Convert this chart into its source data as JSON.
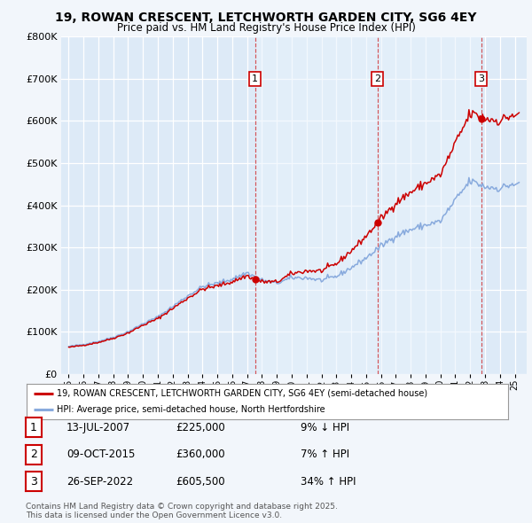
{
  "title1": "19, ROWAN CRESCENT, LETCHWORTH GARDEN CITY, SG6 4EY",
  "title2": "Price paid vs. HM Land Registry's House Price Index (HPI)",
  "legend_red": "19, ROWAN CRESCENT, LETCHWORTH GARDEN CITY, SG6 4EY (semi-detached house)",
  "legend_blue": "HPI: Average price, semi-detached house, North Hertfordshire",
  "footer": "Contains HM Land Registry data © Crown copyright and database right 2025.\nThis data is licensed under the Open Government Licence v3.0.",
  "transactions": [
    {
      "label": "1",
      "date": "13-JUL-2007",
      "price": "£225,000",
      "pct": "9% ↓ HPI",
      "x": 2007.53
    },
    {
      "label": "2",
      "date": "09-OCT-2015",
      "price": "£360,000",
      "pct": "7% ↑ HPI",
      "x": 2015.77
    },
    {
      "label": "3",
      "date": "26-SEP-2022",
      "price": "£605,500",
      "pct": "34% ↑ HPI",
      "x": 2022.73
    }
  ],
  "transaction_prices": [
    225000,
    360000,
    605500
  ],
  "background_color": "#f2f6fb",
  "plot_bg_color": "#ddeaf7",
  "grid_color": "#ffffff",
  "red_color": "#cc0000",
  "blue_color": "#88aadd",
  "ylim": [
    0,
    800000
  ],
  "yticks": [
    0,
    100000,
    200000,
    300000,
    400000,
    500000,
    600000,
    700000,
    800000
  ],
  "xmin": 1994.5,
  "xmax": 2025.8,
  "hpi_anchors_years": [
    1995,
    1996,
    1997,
    1998,
    1999,
    2000,
    2001,
    2002,
    2003,
    2004,
    2005,
    2006,
    2007,
    2008,
    2009,
    2010,
    2011,
    2012,
    2013,
    2014,
    2015,
    2016,
    2017,
    2018,
    2019,
    2020,
    2021,
    2022,
    2023,
    2024,
    2025
  ],
  "hpi_anchors_vals": [
    65000,
    70000,
    77000,
    87000,
    100000,
    119000,
    135000,
    160000,
    185000,
    207000,
    215000,
    225000,
    240000,
    222000,
    215000,
    228000,
    228000,
    222000,
    231000,
    252000,
    275000,
    303000,
    328000,
    342000,
    353000,
    362000,
    412000,
    458000,
    444000,
    440000,
    452000
  ],
  "note_bg_color": "#e8f0f8"
}
